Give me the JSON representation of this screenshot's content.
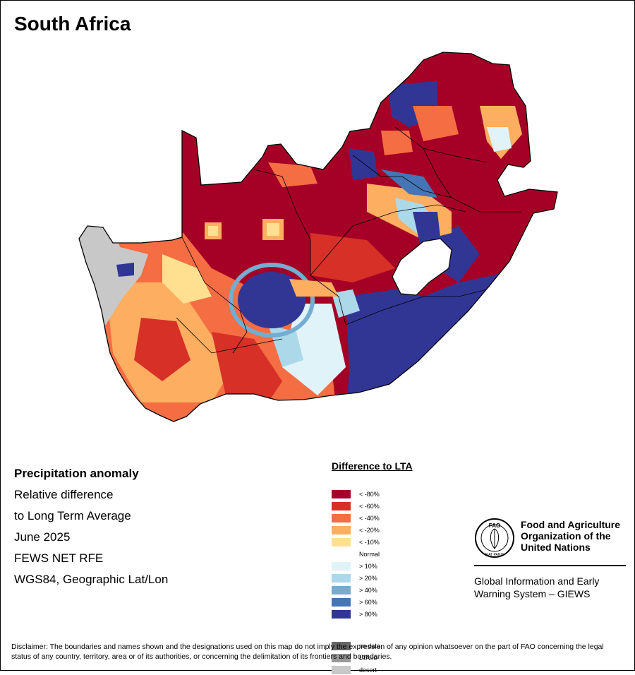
{
  "title": "South Africa",
  "info": {
    "heading": "Precipitation anomaly",
    "line1": "Relative difference",
    "line2": "to Long Term Average",
    "period": "June 2025",
    "source": "FEWS NET RFE",
    "projection": "WGS84, Geographic Lat/Lon"
  },
  "legend": {
    "title": "Difference to LTA",
    "items": [
      {
        "label": "< -80%",
        "color": "#a50026"
      },
      {
        "label": "< -60%",
        "color": "#d73027"
      },
      {
        "label": "< -40%",
        "color": "#f46d43"
      },
      {
        "label": "< -20%",
        "color": "#fdae61"
      },
      {
        "label": "< -10%",
        "color": "#fee090"
      },
      {
        "label": "Normal",
        "color": "#ffffff"
      },
      {
        "label": "> 10%",
        "color": "#e0f3f8"
      },
      {
        "label": "> 20%",
        "color": "#abd9e9"
      },
      {
        "label": "> 40%",
        "color": "#74add1"
      },
      {
        "label": "> 60%",
        "color": "#4575b4"
      },
      {
        "label": "> 80%",
        "color": "#313695"
      }
    ],
    "extra": [
      {
        "label": "no data",
        "color": "#666666"
      },
      {
        "label": "LTA=0",
        "color": "#999999"
      },
      {
        "label": "desert",
        "color": "#c8c8c8"
      }
    ]
  },
  "fao": {
    "logo_text": "FAO",
    "logo_motto": "FIAT PANIS",
    "name_line1": "Food and Agriculture",
    "name_line2": "Organization of the",
    "name_line3": "United Nations",
    "giews_line1": "Global Information and Early",
    "giews_line2": "Warning System – GIEWS"
  },
  "disclaimer": "Disclaimer: The boundaries and names shown and the designations used on this map do not imply the expression of any opinion whatsoever on the part of FAO concerning the legal status of any country, territory, area or of its authorities, or concerning the delimitation of its frontiers and boundaries."
}
